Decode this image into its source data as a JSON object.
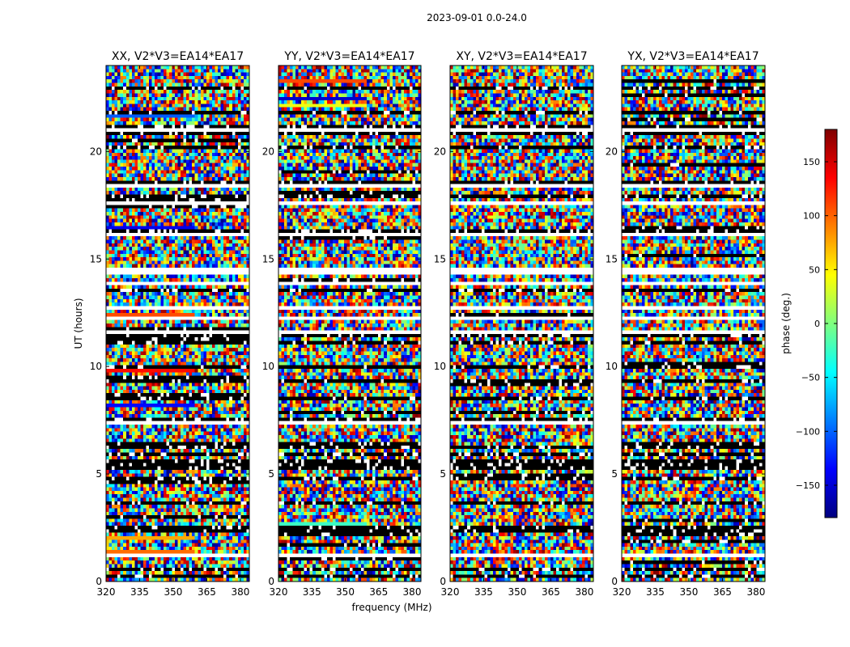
{
  "figure_title": "2023-09-01 0.0-24.0",
  "panels": [
    {
      "title": "XX, V2*V3=EA14*EA17"
    },
    {
      "title": "YY, V2*V3=EA14*EA17"
    },
    {
      "title": "XY, V2*V3=EA14*EA17"
    },
    {
      "title": "YX, V2*V3=EA14*EA17"
    }
  ],
  "colors": {
    "jet_scale": [
      "#00007f",
      "#0000ff",
      "#007fff",
      "#00ffff",
      "#7fff7f",
      "#ffff00",
      "#ff7f00",
      "#ff0000",
      "#7f0000"
    ]
  },
  "chart_data": {
    "type": "heatmap",
    "title": "2023-09-01 0.0-24.0",
    "xlabel": "frequency (MHz)",
    "ylabel": "UT (hours)",
    "xlim": [
      320,
      384
    ],
    "ylim": [
      0,
      24
    ],
    "x_ticks": [
      320,
      335,
      350,
      365,
      380
    ],
    "y_ticks": [
      0,
      5,
      10,
      15,
      20
    ],
    "colorbar": {
      "label": "phase (deg.)",
      "range": [
        -180,
        180
      ],
      "ticks": [
        -150,
        -100,
        -50,
        0,
        50,
        100,
        150
      ]
    },
    "series": [
      {
        "name": "XX, V2*V3=EA14*EA17"
      },
      {
        "name": "YY, V2*V3=EA14*EA17"
      },
      {
        "name": "XY, V2*V3=EA14*EA17"
      },
      {
        "name": "YX, V2*V3=EA14*EA17"
      }
    ],
    "grid": false
  }
}
